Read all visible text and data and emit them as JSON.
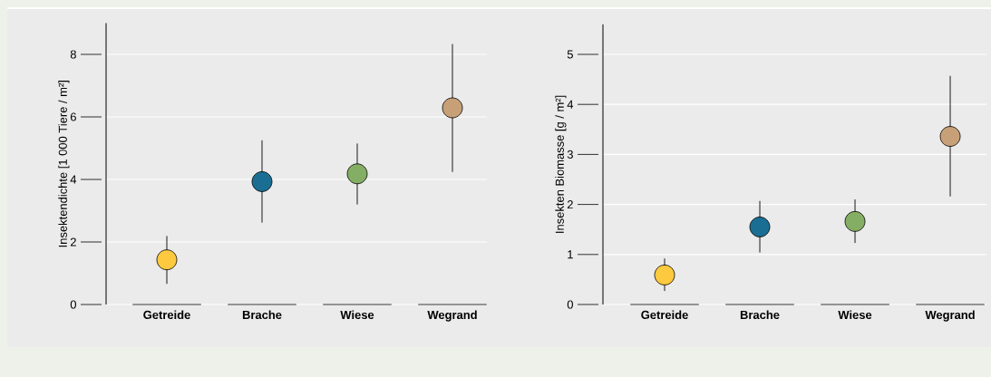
{
  "chart_data": [
    {
      "type": "scatter",
      "ylabel": "Insektendichte [1 000 Tiere / m²]",
      "categories": [
        "Getreide",
        "Brache",
        "Wiese",
        "Wegrand"
      ],
      "values": [
        1.43,
        3.93,
        4.18,
        6.29
      ],
      "colors": [
        "#fdc93e",
        "#1a6e94",
        "#84ae63",
        "#c8a077"
      ],
      "errors": [
        [
          0.66,
          2.19
        ],
        [
          2.62,
          5.25
        ],
        [
          3.2,
          5.15
        ],
        [
          4.24,
          8.33
        ]
      ],
      "ylim": [
        0,
        9
      ],
      "yticks": [
        0,
        2,
        4,
        6,
        8
      ],
      "grid": "y"
    },
    {
      "type": "scatter",
      "ylabel": "Insekten Biomasse [g / m²]",
      "categories": [
        "Getreide",
        "Brache",
        "Wiese",
        "Wegrand"
      ],
      "values": [
        0.59,
        1.55,
        1.66,
        3.36
      ],
      "colors": [
        "#fdc93e",
        "#1a6e94",
        "#84ae63",
        "#c8a077"
      ],
      "errors": [
        [
          0.27,
          0.92
        ],
        [
          1.04,
          2.07
        ],
        [
          1.23,
          2.1
        ],
        [
          2.16,
          4.57
        ]
      ],
      "ylim": [
        0,
        5.6
      ],
      "yticks": [
        0,
        1,
        2,
        3,
        4,
        5
      ],
      "grid": "y"
    }
  ]
}
